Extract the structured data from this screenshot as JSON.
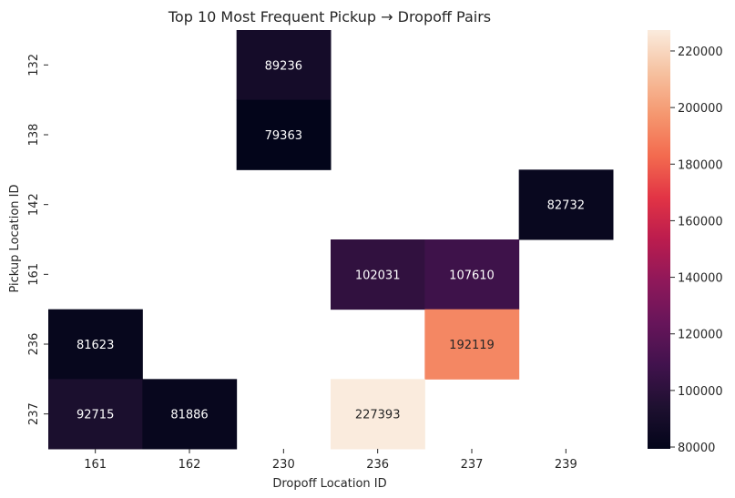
{
  "chart_data": {
    "type": "heatmap",
    "title": "Top 10 Most Frequent Pickup → Dropoff Pairs",
    "xlabel": "Dropoff Location ID",
    "ylabel": "Pickup Location ID",
    "x_categories": [
      "161",
      "162",
      "230",
      "236",
      "237",
      "239"
    ],
    "y_categories": [
      "132",
      "138",
      "142",
      "161",
      "236",
      "237"
    ],
    "values": [
      [
        null,
        null,
        89236,
        null,
        null,
        null
      ],
      [
        null,
        null,
        79363,
        null,
        null,
        null
      ],
      [
        null,
        null,
        null,
        null,
        null,
        82732
      ],
      [
        null,
        null,
        null,
        102031,
        107610,
        null
      ],
      [
        81623,
        null,
        null,
        null,
        192119,
        null
      ],
      [
        92715,
        81886,
        null,
        227393,
        null,
        null
      ]
    ],
    "colorbar": {
      "min": 79363,
      "max": 227393,
      "ticks": [
        80000,
        100000,
        120000,
        140000,
        160000,
        180000,
        200000,
        220000
      ],
      "colormap": "rocket"
    },
    "grid": false
  }
}
